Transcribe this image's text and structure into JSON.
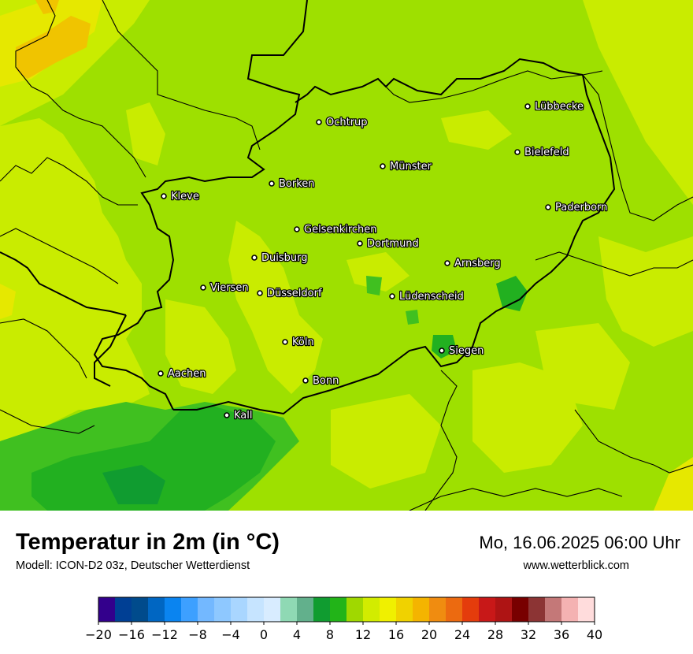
{
  "map": {
    "cities": [
      {
        "name": "Ochtrup"
      },
      {
        "name": "Lübbecke"
      },
      {
        "name": "Bielefeld"
      },
      {
        "name": "Münster"
      },
      {
        "name": "Borken"
      },
      {
        "name": "Kleve"
      },
      {
        "name": "Paderborn"
      },
      {
        "name": "Gelsenkirchen"
      },
      {
        "name": "Dortmund"
      },
      {
        "name": "Duisburg"
      },
      {
        "name": "Arnsberg"
      },
      {
        "name": "Viersen"
      },
      {
        "name": "Düsseldorf"
      },
      {
        "name": "Lüdenscheid"
      },
      {
        "name": "Köln"
      },
      {
        "name": "Siegen"
      },
      {
        "name": "Aachen"
      },
      {
        "name": "Bonn"
      },
      {
        "name": "Kall"
      }
    ],
    "colors": {
      "background": "#9ee000",
      "warm_12_14": "#c9ec00",
      "cool_8_10": "#40c020",
      "cold_6_8": "#22b020",
      "warm_16": "#e6e800",
      "hot_18": "#f0c400",
      "borders": "#000000"
    }
  },
  "footer": {
    "title": "Temperatur in 2m (in °C)",
    "model": "Modell: ICON-D2 03z, Deutscher Wetterdienst",
    "datetime": "Mo, 16.06.2025 06:00 Uhr",
    "website": "www.wetterblick.com"
  },
  "colorbar": {
    "colors": [
      "#33008c",
      "#003f94",
      "#004b8c",
      "#0066c2",
      "#0a84f0",
      "#3da0ff",
      "#73b8ff",
      "#8ec8ff",
      "#a9d6ff",
      "#c6e4ff",
      "#d8ecff",
      "#8fd9b4",
      "#62b08c",
      "#109c30",
      "#22b418",
      "#a0d800",
      "#d2ec00",
      "#f0f000",
      "#f0d200",
      "#f4b400",
      "#f08c10",
      "#ec6a10",
      "#e43c0c",
      "#c81818",
      "#ae1414",
      "#780000",
      "#8c3434",
      "#c47878",
      "#f4b2b2",
      "#ffdcdc"
    ],
    "ticks": [
      "−20",
      "−16",
      "−12",
      "−8",
      "−4",
      "0",
      "4",
      "8",
      "12",
      "16",
      "20",
      "24",
      "28",
      "32",
      "36",
      "40"
    ]
  }
}
